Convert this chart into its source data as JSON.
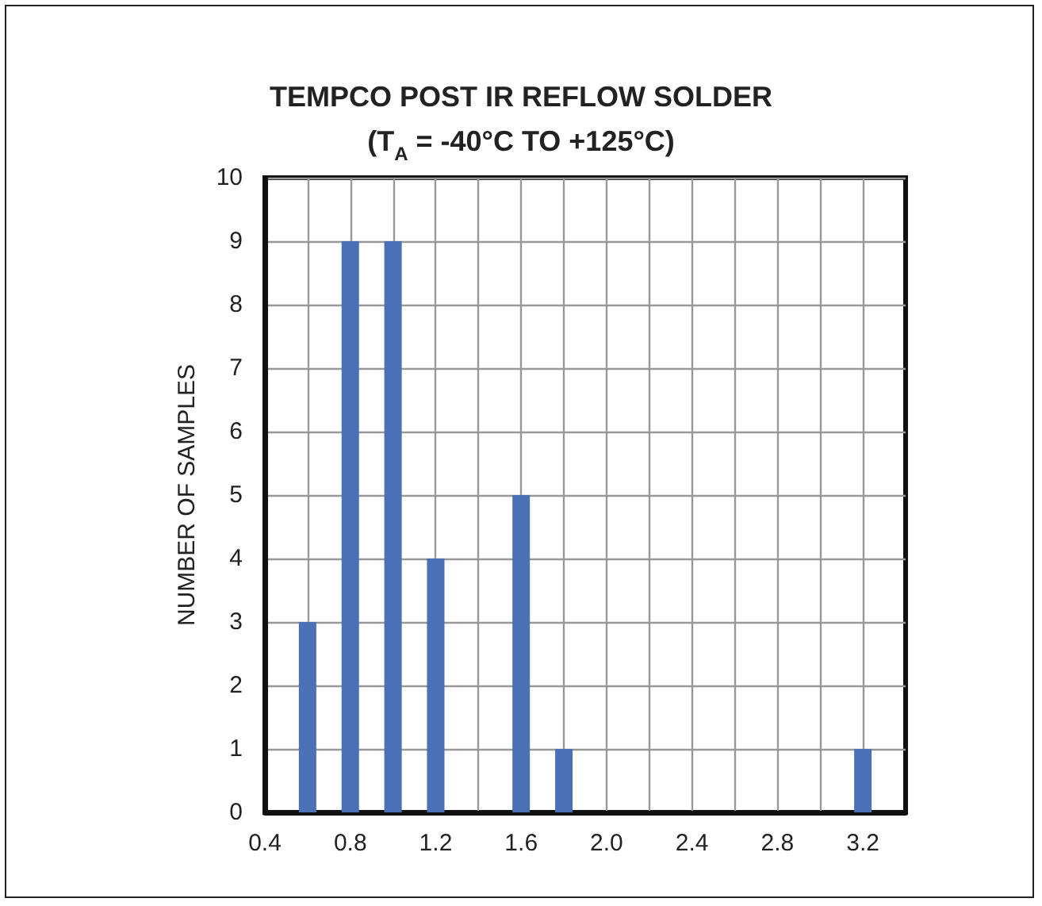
{
  "chart_data": {
    "type": "bar",
    "title": "TEMPCO POST IR REFLOW SOLDER\n(T$_{A}$ = -40°C TO +125°C)",
    "ylabel": "NUMBER OF SAMPLES",
    "x": [
      0.6,
      0.8,
      1.0,
      1.2,
      1.6,
      1.8,
      3.2
    ],
    "values": [
      3,
      9,
      9,
      4,
      5,
      1,
      1
    ],
    "color": "#4a70b5",
    "xlim": [
      0.4,
      3.4
    ],
    "xticks": [
      0.4,
      {
        "value": 0.6,
        "label": null
      },
      0.8,
      {
        "value": 1.0,
        "label": null
      },
      1.2,
      {
        "value": 1.4,
        "label": null
      },
      1.6,
      {
        "value": 1.8,
        "label": null
      },
      {
        "value": 2.0,
        "label": "2.0"
      },
      {
        "value": 2.2,
        "label": null
      },
      2.4,
      {
        "value": 2.6,
        "label": null
      },
      2.8,
      {
        "value": 3.0,
        "label": null
      },
      3.2
    ],
    "ylim": [
      0,
      10
    ],
    "yticks": [
      0,
      1,
      2,
      3,
      4,
      5,
      6,
      7,
      8,
      9,
      10
    ],
    "grid": true
  }
}
